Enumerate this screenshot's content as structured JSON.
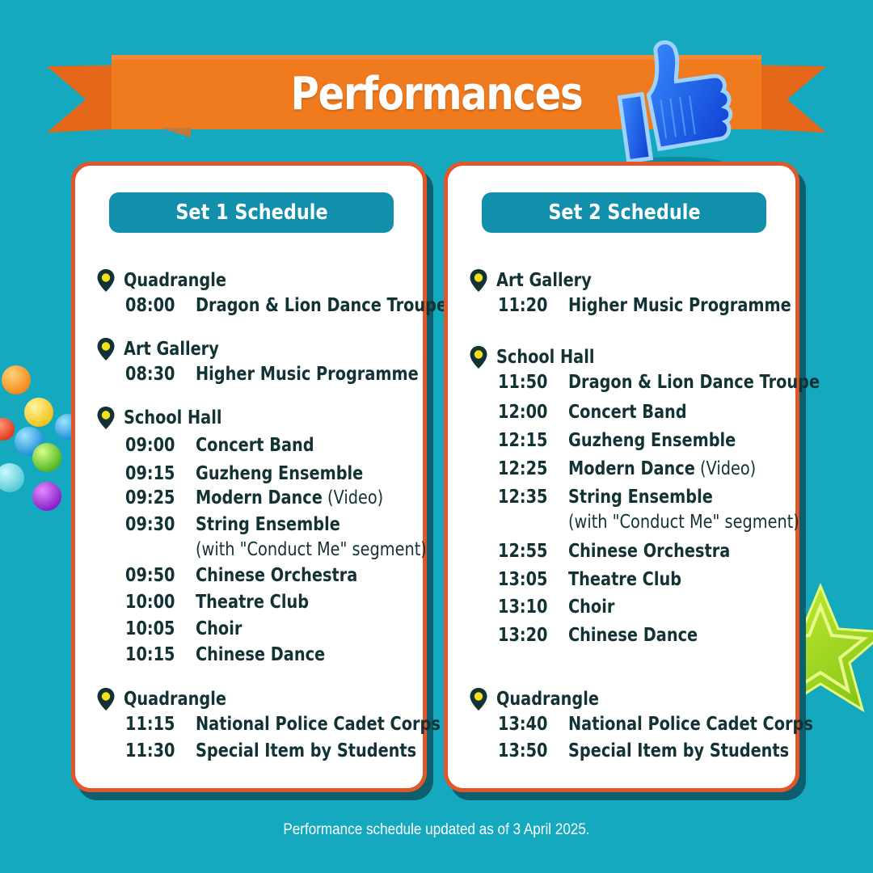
{
  "banner": {
    "title": "Performances"
  },
  "icons": {
    "thumb": "thumbs-up-icon",
    "pin": "location-pin-icon",
    "star": "star-icon"
  },
  "colors": {
    "background": "#15a9c0",
    "banner": "#f07a1e",
    "card_border": "#e2562a",
    "header": "#118fab",
    "pin": "#f5e11a",
    "text": "#133233"
  },
  "set1": {
    "header": "Set 1 Schedule",
    "venues": [
      {
        "label": "Quadrangle",
        "items": [
          {
            "time": "08:00",
            "name": "Dragon & Lion Dance Troupe"
          }
        ]
      },
      {
        "label": "Art Gallery",
        "items": [
          {
            "time": "08:30",
            "name": "Higher Music Programme"
          }
        ]
      },
      {
        "label": "School Hall",
        "items": [
          {
            "time": "09:00",
            "name": "Concert Band"
          },
          {
            "time": "09:15",
            "name": "Guzheng Ensemble"
          },
          {
            "time": "09:25",
            "name": "Modern Dance",
            "note": "(Video)"
          },
          {
            "time": "09:30",
            "name": "String Ensemble",
            "sub": "(with \"Conduct Me\" segment)"
          },
          {
            "time": "09:50",
            "name": "Chinese Orchestra"
          },
          {
            "time": "10:00",
            "name": "Theatre Club"
          },
          {
            "time": "10:05",
            "name": "Choir"
          },
          {
            "time": "10:15",
            "name": "Chinese Dance"
          }
        ]
      },
      {
        "label": "Quadrangle",
        "items": [
          {
            "time": "11:15",
            "name": "National Police Cadet Corps"
          },
          {
            "time": "11:30",
            "name": "Special Item by Students"
          }
        ]
      }
    ]
  },
  "set2": {
    "header": "Set 2 Schedule",
    "venues": [
      {
        "label": "Art Gallery",
        "items": [
          {
            "time": "11:20",
            "name": "Higher Music Programme"
          }
        ]
      },
      {
        "label": "School Hall",
        "items": [
          {
            "time": "11:50",
            "name": "Dragon & Lion Dance Troupe"
          },
          {
            "time": "12:00",
            "name": "Concert Band"
          },
          {
            "time": "12:15",
            "name": "Guzheng Ensemble"
          },
          {
            "time": "12:25",
            "name": "Modern Dance",
            "note": "(Video)"
          },
          {
            "time": "12:35",
            "name": "String Ensemble",
            "sub": "(with \"Conduct Me\" segment)"
          },
          {
            "time": "12:55",
            "name": "Chinese Orchestra"
          },
          {
            "time": "13:05",
            "name": "Theatre Club"
          },
          {
            "time": "13:10",
            "name": "Choir"
          },
          {
            "time": "13:20",
            "name": "Chinese Dance"
          }
        ]
      },
      {
        "label": "Quadrangle",
        "items": [
          {
            "time": "13:40",
            "name": "National Police Cadet Corps"
          },
          {
            "time": "13:50",
            "name": "Special Item by Students"
          }
        ]
      }
    ]
  },
  "footer": "Performance schedule updated as of 3 April 2025."
}
